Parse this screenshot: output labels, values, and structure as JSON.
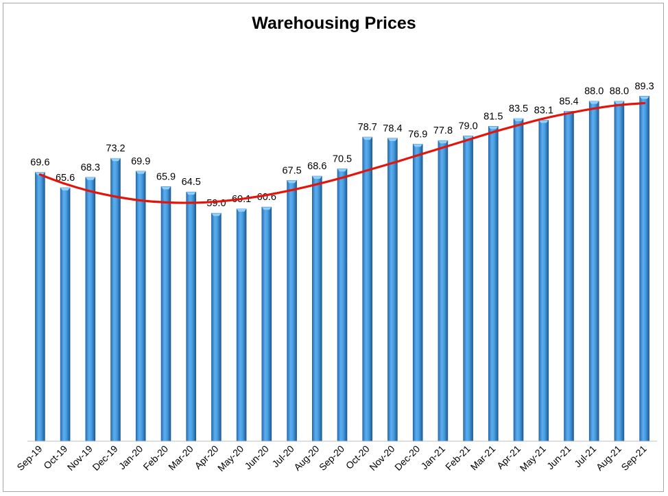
{
  "chart_data": {
    "type": "bar",
    "title": "Warehousing Prices",
    "xlabel": "",
    "ylabel": "",
    "ylim": [
      0,
      100
    ],
    "grid": false,
    "legend": "none",
    "categories": [
      "Sep-19",
      "Oct-19",
      "Nov-19",
      "Dec-19",
      "Jan-20",
      "Feb-20",
      "Mar-20",
      "Apr-20",
      "May-20",
      "Jun-20",
      "Jul-20",
      "Aug-20",
      "Sep-20",
      "Oct-20",
      "Nov-20",
      "Dec-20",
      "Jan-21",
      "Feb-21",
      "Mar-21",
      "Apr-21",
      "May-21",
      "Jun-21",
      "Jul-21",
      "Aug-21",
      "Sep-21"
    ],
    "series": [
      {
        "values": [
          69.6,
          65.6,
          68.3,
          73.2,
          69.9,
          65.9,
          64.5,
          59.0,
          60.1,
          60.6,
          67.5,
          68.6,
          70.5,
          78.7,
          78.4,
          76.9,
          77.8,
          79.0,
          81.5,
          83.5,
          83.1,
          85.4,
          88.0,
          88.0,
          89.3
        ],
        "labels": [
          "69.6",
          "65.6",
          "68.3",
          "73.2",
          "69.9",
          "65.9",
          "64.5",
          "59.0",
          "60.1",
          "60.6",
          "67.5",
          "68.6",
          "70.5",
          "78.7",
          "78.4",
          "76.9",
          "77.8",
          "79.0",
          "81.5",
          "83.5",
          "83.1",
          "85.4",
          "88.0",
          "88.0",
          "89.3"
        ]
      }
    ],
    "trendline": {
      "type": "polynomial",
      "values": [
        69.0,
        66.6,
        64.7,
        63.3,
        62.3,
        61.8,
        61.7,
        62.0,
        62.7,
        63.7,
        65.0,
        66.5,
        68.2,
        70.1,
        72.0,
        74.0,
        76.0,
        78.0,
        80.0,
        81.8,
        83.5,
        84.9,
        86.1,
        87.0,
        87.5
      ]
    },
    "colors": {
      "bar_fill": "#4a9fe0",
      "bar_edge": "#1f5a96",
      "bar_top": "#8fd0ff",
      "trendline": "#e4140a"
    }
  }
}
